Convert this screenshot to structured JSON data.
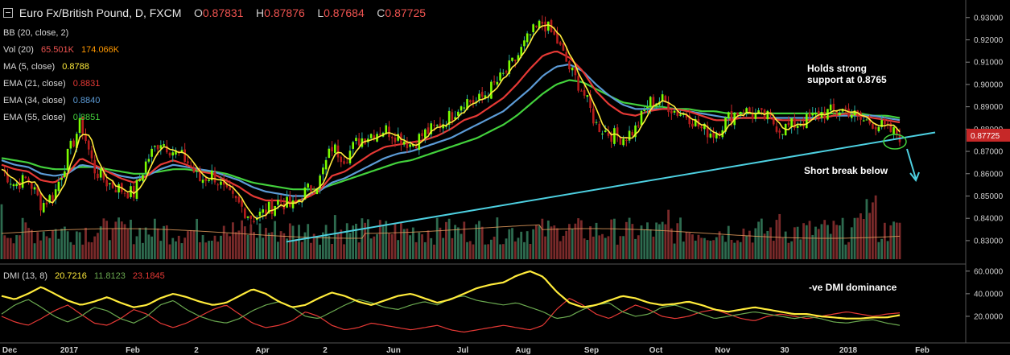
{
  "header": {
    "title": "Euro Fx/British Pound, D, FXCM",
    "o_label": "O",
    "o_value": "0.87831",
    "h_label": "H",
    "h_value": "0.87876",
    "l_label": "L",
    "l_value": "0.87684",
    "c_label": "C",
    "c_value": "0.87725"
  },
  "indicators": [
    {
      "label": "BB (20, close, 2)",
      "values": [],
      "colors": []
    },
    {
      "label": "Vol (20)",
      "values": [
        "65.501K",
        "174.066K"
      ],
      "colors": [
        "#ef5350",
        "#ff9800"
      ]
    },
    {
      "label": "MA (5, close)",
      "values": [
        "0.8788"
      ],
      "colors": [
        "#ffeb3b"
      ]
    },
    {
      "label": "EMA (21, close)",
      "values": [
        "0.8831"
      ],
      "colors": [
        "#e53935"
      ]
    },
    {
      "label": "EMA (34, close)",
      "values": [
        "0.8840"
      ],
      "colors": [
        "#5c9bd6"
      ]
    },
    {
      "label": "EMA (55, close)",
      "values": [
        "0.8851"
      ],
      "colors": [
        "#43d13c"
      ]
    }
  ],
  "dmi": {
    "label": "DMI (13, 8)",
    "values": [
      "20.7216",
      "11.8123",
      "23.1845"
    ],
    "colors": [
      "#ffeb3b",
      "#6aa84f",
      "#e53935"
    ]
  },
  "annotations": {
    "support": [
      "Holds strong",
      "support at 0.8765"
    ],
    "break": "Short break below",
    "dmi_note": "-ve DMI dominance"
  },
  "price_badge": "0.87725",
  "chart_data": {
    "type": "candlestick",
    "y_ticks": [
      "0.93000",
      "0.92000",
      "0.91000",
      "0.90000",
      "0.89000",
      "0.88000",
      "0.87000",
      "0.86000",
      "0.85000",
      "0.84000",
      "0.83000"
    ],
    "ylim": [
      0.826,
      0.931
    ],
    "x_ticks": [
      "Dec",
      "2017",
      "Feb",
      "2",
      "Apr",
      "2",
      "Jun",
      "Jul",
      "Aug",
      "Sep",
      "Oct",
      "Nov",
      "30",
      "2018",
      "Feb"
    ],
    "close_path": [
      0.862,
      0.855,
      0.858,
      0.846,
      0.851,
      0.868,
      0.883,
      0.862,
      0.856,
      0.853,
      0.851,
      0.866,
      0.875,
      0.87,
      0.866,
      0.857,
      0.86,
      0.851,
      0.846,
      0.84,
      0.843,
      0.848,
      0.845,
      0.852,
      0.856,
      0.872,
      0.867,
      0.875,
      0.878,
      0.88,
      0.877,
      0.873,
      0.878,
      0.881,
      0.886,
      0.893,
      0.892,
      0.898,
      0.904,
      0.912,
      0.922,
      0.928,
      0.92,
      0.907,
      0.897,
      0.882,
      0.878,
      0.876,
      0.88,
      0.892,
      0.893,
      0.888,
      0.886,
      0.88,
      0.878,
      0.885,
      0.889,
      0.886,
      0.885,
      0.88,
      0.882,
      0.884,
      0.887,
      0.888,
      0.889,
      0.884,
      0.883,
      0.88,
      0.877
    ],
    "ema21": [
      0.864,
      0.862,
      0.861,
      0.857,
      0.856,
      0.86,
      0.867,
      0.864,
      0.861,
      0.858,
      0.856,
      0.859,
      0.864,
      0.866,
      0.864,
      0.861,
      0.86,
      0.857,
      0.854,
      0.85,
      0.848,
      0.848,
      0.847,
      0.849,
      0.852,
      0.859,
      0.861,
      0.865,
      0.869,
      0.872,
      0.873,
      0.874,
      0.875,
      0.877,
      0.88,
      0.884,
      0.886,
      0.89,
      0.894,
      0.9,
      0.907,
      0.913,
      0.915,
      0.912,
      0.906,
      0.897,
      0.891,
      0.887,
      0.886,
      0.888,
      0.889,
      0.889,
      0.888,
      0.886,
      0.884,
      0.884,
      0.885,
      0.885,
      0.885,
      0.884,
      0.884,
      0.884,
      0.885,
      0.886,
      0.887,
      0.886,
      0.885,
      0.884,
      0.883
    ],
    "ema34": [
      0.866,
      0.864,
      0.863,
      0.86,
      0.859,
      0.86,
      0.864,
      0.863,
      0.861,
      0.859,
      0.858,
      0.859,
      0.862,
      0.864,
      0.863,
      0.862,
      0.861,
      0.859,
      0.857,
      0.854,
      0.852,
      0.851,
      0.85,
      0.85,
      0.852,
      0.856,
      0.858,
      0.861,
      0.864,
      0.867,
      0.869,
      0.87,
      0.872,
      0.874,
      0.876,
      0.879,
      0.882,
      0.885,
      0.888,
      0.893,
      0.898,
      0.904,
      0.908,
      0.909,
      0.906,
      0.9,
      0.895,
      0.891,
      0.889,
      0.889,
      0.889,
      0.889,
      0.888,
      0.887,
      0.886,
      0.885,
      0.885,
      0.885,
      0.885,
      0.885,
      0.885,
      0.885,
      0.885,
      0.886,
      0.886,
      0.886,
      0.886,
      0.885,
      0.884
    ],
    "ema55": [
      0.867,
      0.866,
      0.865,
      0.863,
      0.862,
      0.862,
      0.863,
      0.863,
      0.862,
      0.861,
      0.86,
      0.86,
      0.861,
      0.862,
      0.862,
      0.861,
      0.861,
      0.86,
      0.858,
      0.856,
      0.855,
      0.854,
      0.853,
      0.853,
      0.853,
      0.855,
      0.857,
      0.859,
      0.861,
      0.863,
      0.865,
      0.866,
      0.868,
      0.87,
      0.872,
      0.874,
      0.876,
      0.879,
      0.882,
      0.886,
      0.891,
      0.896,
      0.9,
      0.902,
      0.901,
      0.898,
      0.895,
      0.892,
      0.891,
      0.89,
      0.89,
      0.889,
      0.889,
      0.888,
      0.888,
      0.887,
      0.887,
      0.887,
      0.887,
      0.887,
      0.887,
      0.887,
      0.887,
      0.887,
      0.887,
      0.887,
      0.886,
      0.886,
      0.885
    ],
    "trendline": [
      [
        0.8295,
        0
      ],
      [
        0.8785,
        1
      ]
    ],
    "dmi_ylim": [
      0,
      62
    ],
    "dmi_ticks": [
      "60.0000",
      "40.0000",
      "20.0000"
    ],
    "adx": [
      38,
      35,
      40,
      46,
      40,
      34,
      30,
      33,
      37,
      32,
      28,
      30,
      36,
      40,
      37,
      33,
      30,
      32,
      38,
      44,
      40,
      33,
      28,
      30,
      36,
      41,
      38,
      33,
      30,
      34,
      38,
      40,
      36,
      32,
      35,
      40,
      45,
      48,
      50,
      56,
      60,
      55,
      42,
      32,
      28,
      30,
      34,
      38,
      36,
      32,
      30,
      31,
      33,
      30,
      26,
      24,
      26,
      28,
      26,
      24,
      22,
      22,
      20,
      19,
      18,
      18,
      19,
      19,
      21
    ],
    "pdi": [
      22,
      30,
      35,
      28,
      20,
      15,
      20,
      28,
      25,
      18,
      14,
      20,
      30,
      34,
      26,
      20,
      16,
      14,
      18,
      25,
      30,
      33,
      28,
      20,
      18,
      24,
      30,
      35,
      32,
      28,
      26,
      30,
      33,
      30,
      36,
      38,
      34,
      32,
      30,
      32,
      28,
      24,
      18,
      20,
      26,
      30,
      32,
      24,
      20,
      22,
      28,
      30,
      26,
      22,
      18,
      20,
      22,
      24,
      22,
      20,
      18,
      20,
      18,
      15,
      14,
      16,
      17,
      14,
      12
    ],
    "mdi": [
      20,
      15,
      12,
      18,
      25,
      30,
      22,
      14,
      12,
      18,
      26,
      22,
      14,
      10,
      14,
      20,
      26,
      30,
      22,
      14,
      10,
      12,
      16,
      24,
      20,
      12,
      8,
      10,
      14,
      12,
      10,
      8,
      10,
      12,
      8,
      6,
      8,
      10,
      12,
      10,
      8,
      12,
      26,
      36,
      30,
      22,
      18,
      24,
      30,
      26,
      20,
      18,
      20,
      24,
      26,
      22,
      18,
      16,
      20,
      22,
      20,
      18,
      20,
      22,
      24,
      22,
      20,
      22,
      23
    ]
  }
}
